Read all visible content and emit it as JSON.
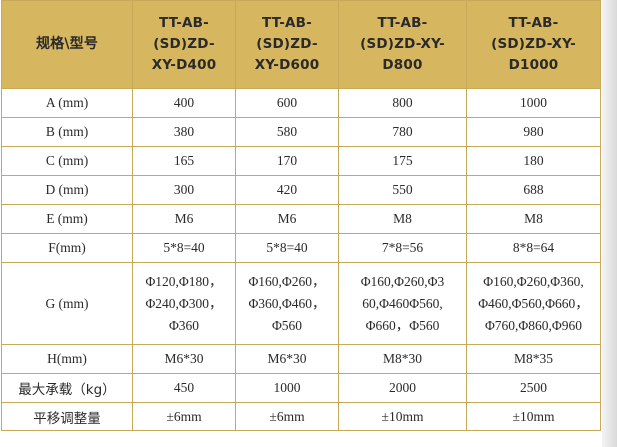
{
  "table": {
    "header": {
      "corner": "规格\\型号",
      "models": [
        [
          "TT-AB-",
          "(SD)ZD-",
          "XY-D400"
        ],
        [
          "TT-AB-",
          "(SD)ZD-",
          "XY-D600"
        ],
        [
          "TT-AB-",
          "(SD)ZD-XY-",
          "D800"
        ],
        [
          "TT-AB-",
          "(SD)ZD-XY-",
          "D1000"
        ]
      ]
    },
    "rows": [
      {
        "label": "A (mm)",
        "values": [
          "400",
          "600",
          "800",
          "1000"
        ]
      },
      {
        "label": "B (mm)",
        "values": [
          "380",
          "580",
          "780",
          "980"
        ]
      },
      {
        "label": "C (mm)",
        "values": [
          "165",
          "170",
          "175",
          "180"
        ]
      },
      {
        "label": "D (mm)",
        "values": [
          "300",
          "420",
          "550",
          "688"
        ]
      },
      {
        "label": "E (mm)",
        "values": [
          "M6",
          "M6",
          "M8",
          "M8"
        ]
      },
      {
        "label": "F(mm)",
        "values": [
          "5*8=40",
          "5*8=40",
          "7*8=56",
          "8*8=64"
        ]
      },
      {
        "label": "G (mm)",
        "values": [
          [
            "Φ120,Φ180，",
            "Φ240,Φ300，",
            "Φ360"
          ],
          [
            "Φ160,Φ260，",
            "Φ360,Φ460，",
            "Φ560"
          ],
          [
            "Φ160,Φ260,Φ3",
            "60,Φ460Φ560,",
            "Φ660，Φ560"
          ],
          [
            "Φ160,Φ260,Φ360,",
            "Φ460,Φ560,Φ660，",
            "Φ760,Φ860,Φ960"
          ]
        ]
      },
      {
        "label": "H(mm)",
        "values": [
          "M6*30",
          "M6*30",
          "M8*30",
          "M8*35"
        ]
      },
      {
        "label": "最大承载（kg）",
        "values": [
          "450",
          "1000",
          "2000",
          "2500"
        ]
      },
      {
        "label": "平移调整量",
        "values": [
          "±6mm",
          "±6mm",
          "±10mm",
          "±10mm"
        ]
      }
    ]
  }
}
